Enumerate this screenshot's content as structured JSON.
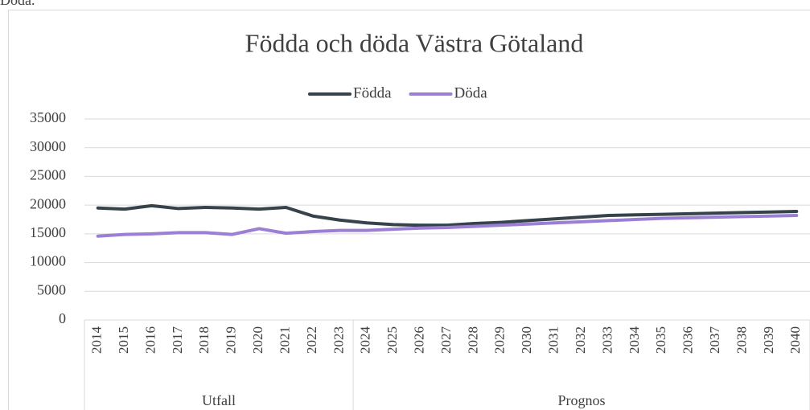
{
  "caption": "Döda.",
  "chart_data": {
    "type": "line",
    "title": "Födda och döda Västra Götaland",
    "categories": [
      "2014",
      "2015",
      "2016",
      "2017",
      "2018",
      "2019",
      "2020",
      "2021",
      "2022",
      "2023",
      "2024",
      "2025",
      "2026",
      "2027",
      "2028",
      "2029",
      "2030",
      "2031",
      "2032",
      "2033",
      "2034",
      "2035",
      "2036",
      "2037",
      "2038",
      "2039",
      "2040"
    ],
    "groups": [
      {
        "label": "Utfall",
        "from": "2014",
        "to": "2023"
      },
      {
        "label": "Prognos",
        "from": "2024",
        "to": "2040"
      }
    ],
    "series": [
      {
        "name": "Födda",
        "color": "#37434b",
        "values": [
          19500,
          19300,
          19900,
          19400,
          19600,
          19500,
          19300,
          19600,
          18100,
          17400,
          16900,
          16600,
          16500,
          16500,
          16800,
          17000,
          17300,
          17600,
          17900,
          18200,
          18300,
          18400,
          18500,
          18600,
          18700,
          18800,
          18900
        ]
      },
      {
        "name": "Döda",
        "color": "#9b7fd4",
        "values": [
          14600,
          14900,
          15000,
          15200,
          15200,
          14900,
          15900,
          15100,
          15400,
          15600,
          15600,
          15800,
          16000,
          16100,
          16300,
          16500,
          16700,
          16900,
          17100,
          17300,
          17500,
          17700,
          17800,
          17900,
          18000,
          18100,
          18200
        ]
      }
    ],
    "ylim": [
      0,
      35000
    ],
    "yticks": [
      0,
      5000,
      10000,
      15000,
      20000,
      25000,
      30000,
      35000
    ],
    "grid": true,
    "legend": "top"
  }
}
